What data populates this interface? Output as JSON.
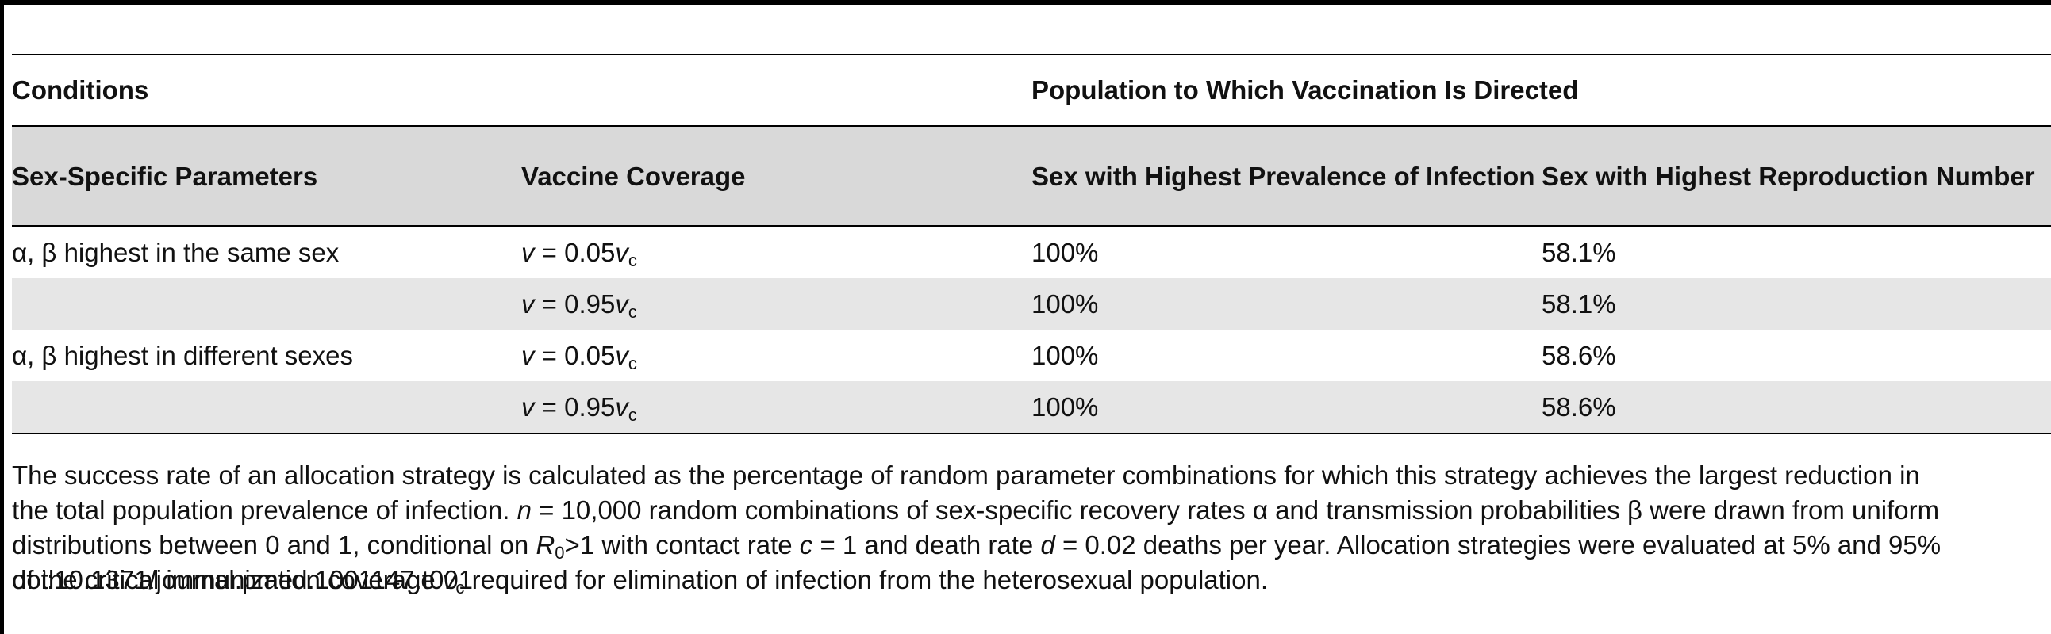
{
  "table": {
    "group_headers": {
      "conditions": "Conditions",
      "population": "Population to Which Vaccination Is Directed"
    },
    "column_headers": [
      "Sex-Specific Parameters",
      "Vaccine Coverage",
      "Sex with Highest Prevalence of Infection",
      "Sex with Highest Reproduction Number"
    ],
    "rows": [
      {
        "params": "α, β highest in the same sex",
        "coverage_v": "v",
        "coverage_eq": " = 0.05",
        "coverage_vc": "v",
        "coverage_sub": "c",
        "prevalence": "100%",
        "reproduction": "58.1%"
      },
      {
        "params": "",
        "coverage_v": "v",
        "coverage_eq": " = 0.95",
        "coverage_vc": "v",
        "coverage_sub": "c",
        "prevalence": "100%",
        "reproduction": "58.1%"
      },
      {
        "params": "α, β highest in different sexes",
        "coverage_v": "v",
        "coverage_eq": " = 0.05",
        "coverage_vc": "v",
        "coverage_sub": "c",
        "prevalence": "100%",
        "reproduction": "58.6%"
      },
      {
        "params": "",
        "coverage_v": "v",
        "coverage_eq": " = 0.95",
        "coverage_vc": "v",
        "coverage_sub": "c",
        "prevalence": "100%",
        "reproduction": "58.6%"
      }
    ]
  },
  "footnote": {
    "p1": "The success rate of an allocation strategy is calculated as the percentage of random parameter combinations for which this strategy achieves the largest reduction in",
    "p2a": "the total population prevalence of infection. ",
    "n_var": "n",
    "p2b": " = 10,000 random combinations of sex-specific recovery rates α and transmission probabilities β were drawn from uniform",
    "p3a": "distributions between 0 and 1, conditional on ",
    "r_var": "R",
    "r_sub": "0",
    "p3b": ">1 with contact rate ",
    "c_var": "c",
    "p3c": " = 1 and death rate ",
    "d_var": "d",
    "p3d": " = 0.02 deaths per year. Allocation strategies were evaluated at 5% and 95%",
    "p4a": "of the critical immunization coverage ",
    "v_var": "v",
    "v_sub": "c",
    "p4b": " required for elimination of infection from the heterosexual population."
  },
  "doi": "doi:10.1371/journal.pmed.1001147.t001"
}
